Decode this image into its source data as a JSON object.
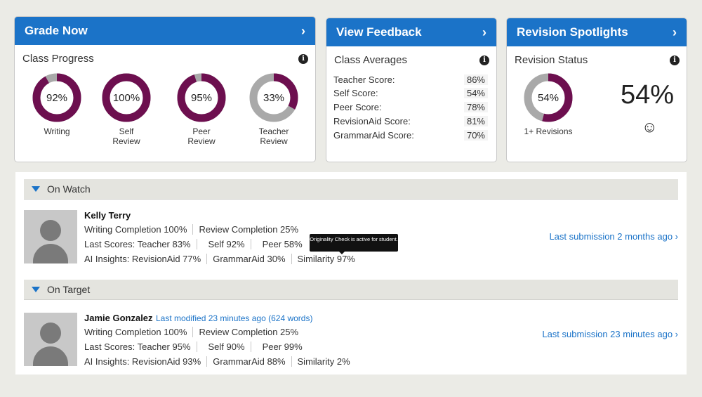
{
  "grade_now": {
    "title": "Grade Now",
    "subtitle": "Class Progress",
    "donuts": [
      {
        "pct_label": "92%",
        "value": 0.92,
        "label": "Writing",
        "color": "#6d0f4f"
      },
      {
        "pct_label": "100%",
        "value": 1.0,
        "label": "Self\nReview",
        "color": "#6d0f4f"
      },
      {
        "pct_label": "95%",
        "value": 0.95,
        "label": "Peer\nReview",
        "color": "#6d0f4f"
      },
      {
        "pct_label": "33%",
        "value": 0.33,
        "label": "Teacher\nReview",
        "color": "#6d0f4f"
      }
    ]
  },
  "view_feedback": {
    "title": "View Feedback",
    "subtitle": "Class Averages",
    "rows": [
      {
        "label": "Teacher Score:",
        "value": "86%"
      },
      {
        "label": "Self Score:",
        "value": "54%"
      },
      {
        "label": "Peer Score:",
        "value": "78%"
      },
      {
        "label": "RevisionAid Score:",
        "value": "81%"
      },
      {
        "label": "GrammarAid Score:",
        "value": "70%"
      }
    ]
  },
  "revision": {
    "title": "Revision Spotlights",
    "subtitle": "Revision Status",
    "donut": {
      "pct_label": "54%",
      "value": 0.54,
      "label": "1+ Revisions",
      "color": "#6d0f4f"
    },
    "big_pct": "54%",
    "smiley": "☺"
  },
  "colors": {
    "accent": "#1b73c8",
    "donut_fill": "#6d0f4f",
    "donut_track": "#a9a9a9"
  },
  "sections": {
    "on_watch": {
      "title": "On Watch",
      "student": {
        "name": "Kelly Terry",
        "modified": "",
        "line1": [
          "Writing Completion 100%",
          "Review Completion 25%"
        ],
        "line2": [
          "Last Scores: Teacher 83%",
          "Self 92%",
          "Peer 58%"
        ],
        "line3": [
          "AI Insights: RevisionAid 77%",
          "GrammarAid 30%",
          "Similarity 97%"
        ],
        "last_submission": "Last submission 2 months ago ›"
      },
      "tooltip": "Originality Check is active for student."
    },
    "on_target": {
      "title": "On Target",
      "student": {
        "name": "Jamie Gonzalez",
        "modified": "Last modified 23 minutes ago (624 words)",
        "line1": [
          "Writing Completion 100%",
          "Review Completion 25%"
        ],
        "line2": [
          "Last Scores: Teacher 95%",
          "Self 90%",
          "Peer 99%"
        ],
        "line3": [
          "AI Insights: RevisionAid 93%",
          "GrammarAid 88%",
          "Similarity 2%"
        ],
        "last_submission": "Last submission 23 minutes ago ›"
      }
    }
  },
  "chevron": "›",
  "info_glyph": "i"
}
